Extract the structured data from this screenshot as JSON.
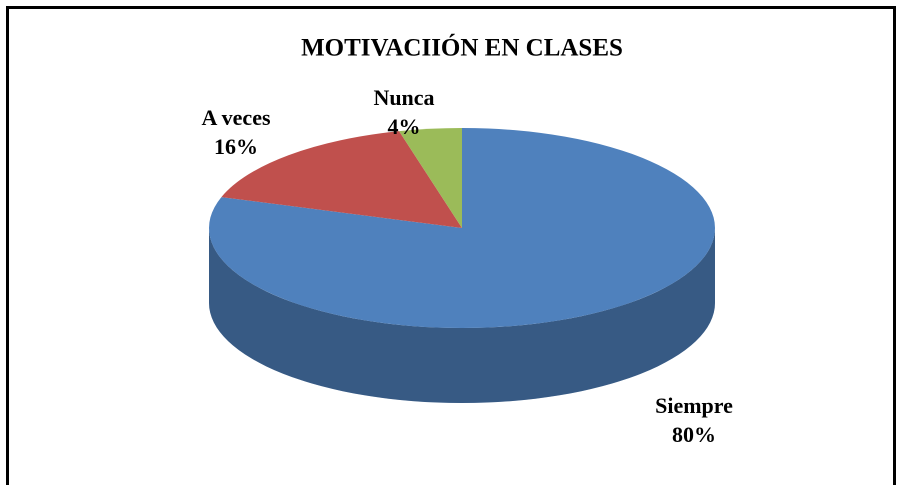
{
  "chart_data": {
    "type": "pie",
    "title": "MOTIVACIIÓN EN CLASES",
    "categories": [
      "Siempre",
      "A veces",
      "Nunca"
    ],
    "values": [
      80,
      16,
      4
    ],
    "value_labels": [
      "80%",
      "16%",
      "4%"
    ],
    "colors": [
      "#4f81bd",
      "#c0504d",
      "#9bbb59"
    ]
  }
}
